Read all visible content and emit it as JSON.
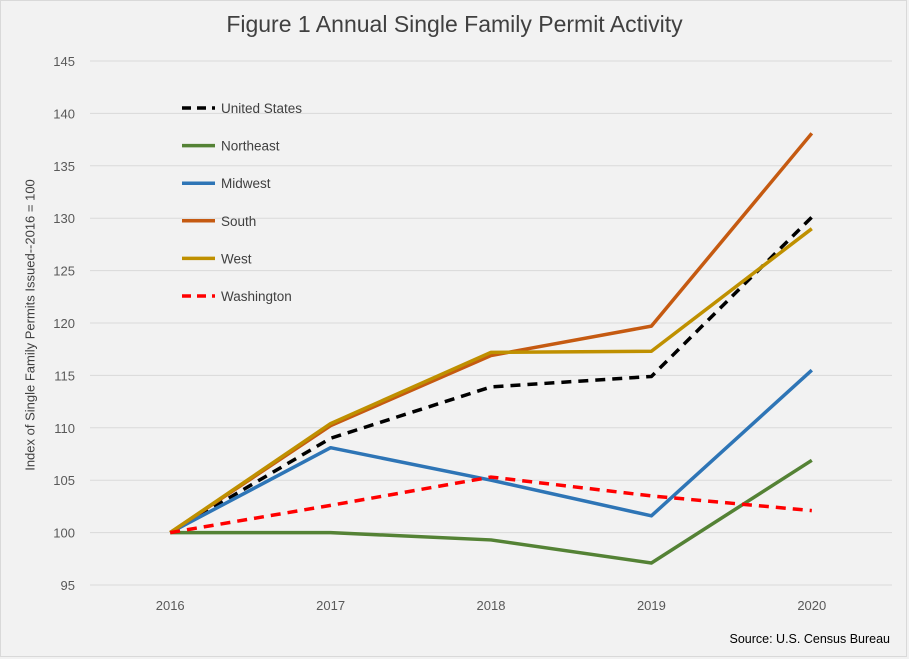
{
  "chart_data": {
    "type": "line",
    "title": "Figure 1 Annual Single Family Permit Activity",
    "ylabel": "Index of Single Family Permits Issued--2016 = 100",
    "xlabel": "",
    "source": "Source: U.S. Census Bureau",
    "categories": [
      "2016",
      "2017",
      "2018",
      "2019",
      "2020"
    ],
    "ylim": [
      95,
      145
    ],
    "yticks": [
      95,
      100,
      105,
      110,
      115,
      120,
      125,
      130,
      135,
      140,
      145
    ],
    "grid": true,
    "legend_position": "top-left",
    "series": [
      {
        "name": "United States",
        "values": [
          100,
          109.0,
          113.9,
          114.9,
          130.1
        ],
        "color": "#000000",
        "dashed": true
      },
      {
        "name": "Northeast",
        "values": [
          100,
          100,
          99.3,
          97.1,
          106.9
        ],
        "color": "#548235",
        "dashed": false
      },
      {
        "name": "Midwest",
        "values": [
          100,
          108.1,
          105.0,
          101.6,
          115.5
        ],
        "color": "#2e75b6",
        "dashed": false
      },
      {
        "name": "South",
        "values": [
          100,
          110.2,
          116.9,
          119.7,
          138.1
        ],
        "color": "#c55a11",
        "dashed": false
      },
      {
        "name": "West",
        "values": [
          100,
          110.4,
          117.2,
          117.3,
          129.0
        ],
        "color": "#bf9000",
        "dashed": false
      },
      {
        "name": "Washington",
        "values": [
          100,
          102.6,
          105.3,
          103.5,
          102.1
        ],
        "color": "#ff0000",
        "dashed": true
      }
    ]
  }
}
